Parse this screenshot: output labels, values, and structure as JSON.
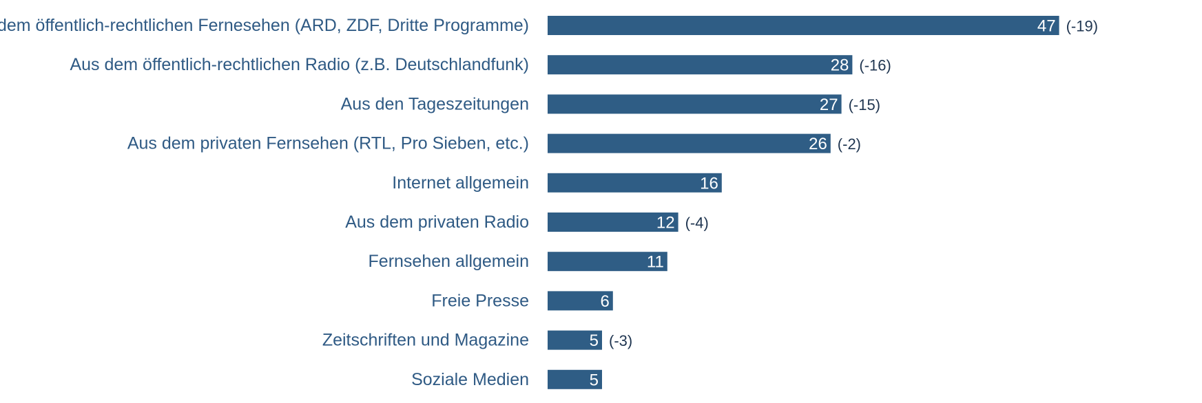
{
  "chart_data": {
    "type": "bar",
    "orientation": "horizontal",
    "categories": [
      "Aus dem öffentlich-rechtlichen Fernesehen (ARD, ZDF, Dritte Programme)",
      "Aus dem öffentlich-rechtlichen Radio (z.B. Deutschlandfunk)",
      "Aus den Tageszeitungen",
      "Aus dem privaten Fernsehen (RTL, Pro Sieben, etc.)",
      "Internet allgemein",
      "Aus dem privaten Radio",
      "Fernsehen allgemein",
      "Freie Presse",
      "Zeitschriften und Magazine",
      "Soziale Medien"
    ],
    "values": [
      47,
      28,
      27,
      26,
      16,
      12,
      11,
      6,
      5,
      5
    ],
    "changes": [
      "(-19)",
      "(-16)",
      "(-15)",
      "(-2)",
      "",
      "(-4)",
      "",
      "",
      "(-3)",
      ""
    ],
    "xlim": [
      0,
      60
    ],
    "grid": false,
    "legend": "none",
    "colors": {
      "bar": "#2f5d85",
      "category_text": "#2f5a84",
      "value_text": "#ffffff",
      "change_text": "#1f3550"
    }
  }
}
